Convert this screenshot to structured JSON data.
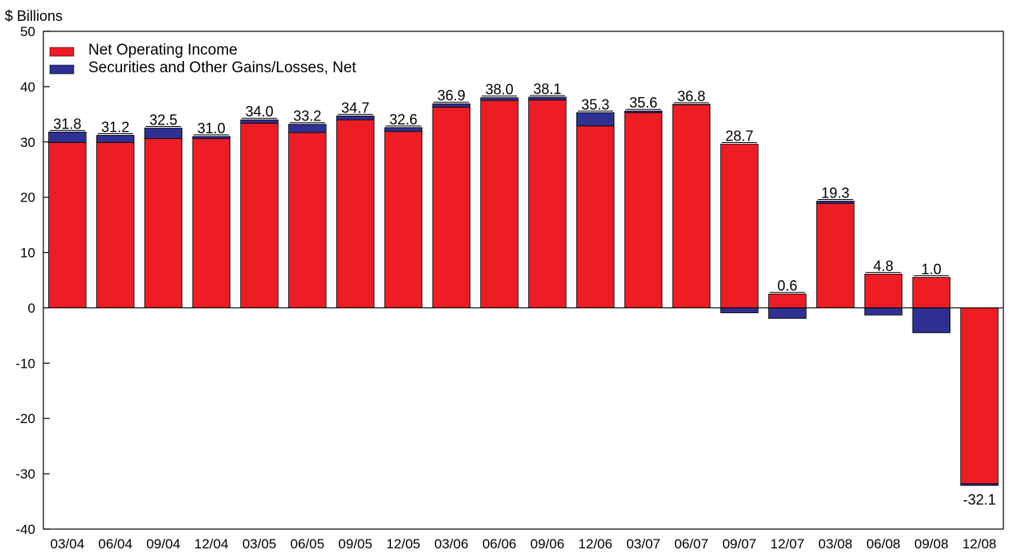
{
  "colors": {
    "net_operating_income": "#ee1d25",
    "securities_gains_losses": "#2e3192",
    "axis": "#000000"
  },
  "chart_data": {
    "type": "bar",
    "stacked": true,
    "ylabel": "$ Billions",
    "ylim": [
      -40,
      50
    ],
    "yticks": [
      50,
      40,
      30,
      20,
      10,
      0,
      -10,
      -20,
      -30,
      -40
    ],
    "grid": false,
    "legend_position": "top-left",
    "categories": [
      "03/04",
      "06/04",
      "09/04",
      "12/04",
      "03/05",
      "06/05",
      "09/05",
      "12/05",
      "03/06",
      "06/06",
      "09/06",
      "12/06",
      "03/07",
      "06/07",
      "09/07",
      "12/07",
      "03/08",
      "06/08",
      "09/08",
      "12/08"
    ],
    "series": [
      {
        "name": "Net Operating Income",
        "values": [
          29.9,
          29.9,
          30.6,
          30.6,
          33.4,
          31.7,
          34.0,
          31.9,
          36.3,
          37.5,
          37.6,
          32.9,
          35.3,
          36.7,
          29.6,
          2.5,
          18.9,
          6.1,
          5.5,
          -31.8
        ]
      },
      {
        "name": "Securities and Other Gains/Losses, Net",
        "values": [
          1.9,
          1.3,
          1.9,
          0.4,
          0.6,
          1.5,
          0.7,
          0.7,
          0.6,
          0.5,
          0.5,
          2.4,
          0.3,
          0.1,
          -0.9,
          -1.9,
          0.4,
          -1.3,
          -4.5,
          -0.3
        ]
      }
    ],
    "totals": [
      "31.8",
      "31.2",
      "32.5",
      "31.0",
      "34.0",
      "33.2",
      "34.7",
      "32.6",
      "36.9",
      "38.0",
      "38.1",
      "35.3",
      "35.6",
      "36.8",
      "28.7",
      "0.6",
      "19.3",
      "4.8",
      "1.0",
      "-32.1"
    ]
  }
}
